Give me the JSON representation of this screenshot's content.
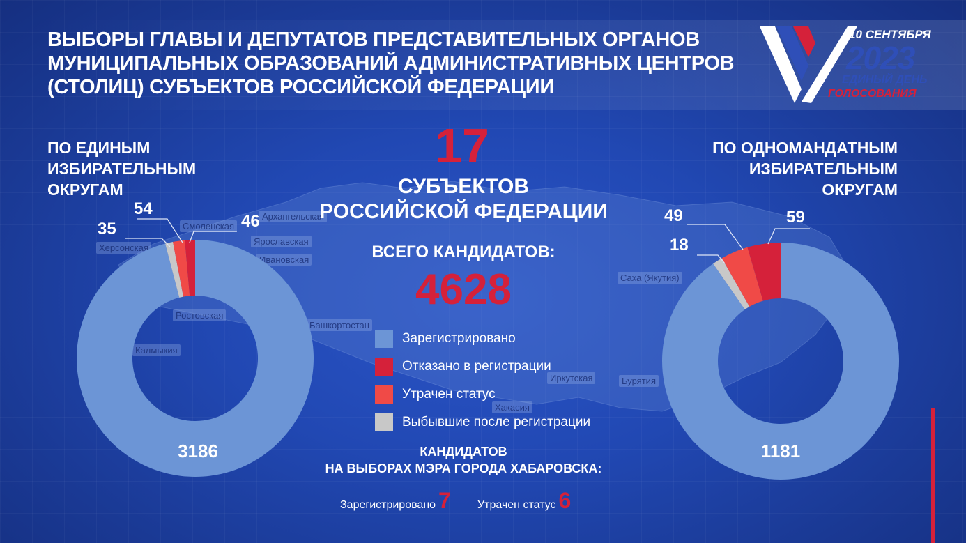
{
  "title_lines": [
    "Выборы главы и депутатов представительных органов",
    "муниципальных образований административных центров",
    "(столиц) субъектов Российской Федерации"
  ],
  "logo": {
    "date": "10 СЕНТЯБРЯ",
    "year": "2023",
    "line1": "ЕДИНЫЙ ДЕНЬ",
    "line2": "ГОЛОСОВАНИЯ"
  },
  "left_heading_lines": [
    "По единым",
    "избирательным",
    "округам"
  ],
  "right_heading_lines": [
    "По одномандатным",
    "избирательным",
    "округам"
  ],
  "center": {
    "subjects_count": "17",
    "subjects_label_lines": [
      "субъектов",
      "Российской Федерации"
    ],
    "total_label": "Всего кандидатов:",
    "total_value": "4628"
  },
  "map_labels": [
    "Смоленская",
    "Архангельская",
    "Херсонская",
    "Ярославская",
    "Ивановская",
    "Ростовская",
    "Калмыкия",
    "Башкортостан",
    "Саха (Якутия)",
    "Иркутская",
    "Бурятия",
    "Хакасия"
  ],
  "legend": [
    {
      "label": "Зарегистрировано",
      "color": "#6c95d6"
    },
    {
      "label": "Отказано в регистрации",
      "color": "#d5213a"
    },
    {
      "label": "Утрачен статус",
      "color": "#f04a47"
    },
    {
      "label": "Выбывшие после регистрации",
      "color": "#c8c8c8"
    }
  ],
  "mayor": {
    "title_lines": [
      "Кандидатов",
      "на выборах мэра города Хабаровска:"
    ],
    "registered_label": "Зарегистрировано",
    "registered_value": "7",
    "lost_status_label": "Утрачен статус",
    "lost_status_value": "6"
  },
  "chart_data": [
    {
      "type": "pie",
      "title": "По единым избирательным округам",
      "categories": [
        "Зарегистрировано",
        "Отказано в регистрации",
        "Утрачен статус",
        "Выбывшие после регистрации"
      ],
      "values": [
        3186,
        46,
        54,
        35
      ],
      "labels": [
        "3186",
        "46",
        "54",
        "35"
      ],
      "colors": [
        "#6c95d6",
        "#d5213a",
        "#f04a47",
        "#c8c8c8"
      ]
    },
    {
      "type": "pie",
      "title": "По одномандатным избирательным округам",
      "categories": [
        "Зарегистрировано",
        "Отказано в регистрации",
        "Утрачен статус",
        "Выбывшие после регистрации"
      ],
      "values": [
        1181,
        59,
        49,
        18
      ],
      "labels": [
        "1181",
        "59",
        "49",
        "18"
      ],
      "colors": [
        "#6c95d6",
        "#d5213a",
        "#f04a47",
        "#c8c8c8"
      ]
    }
  ]
}
